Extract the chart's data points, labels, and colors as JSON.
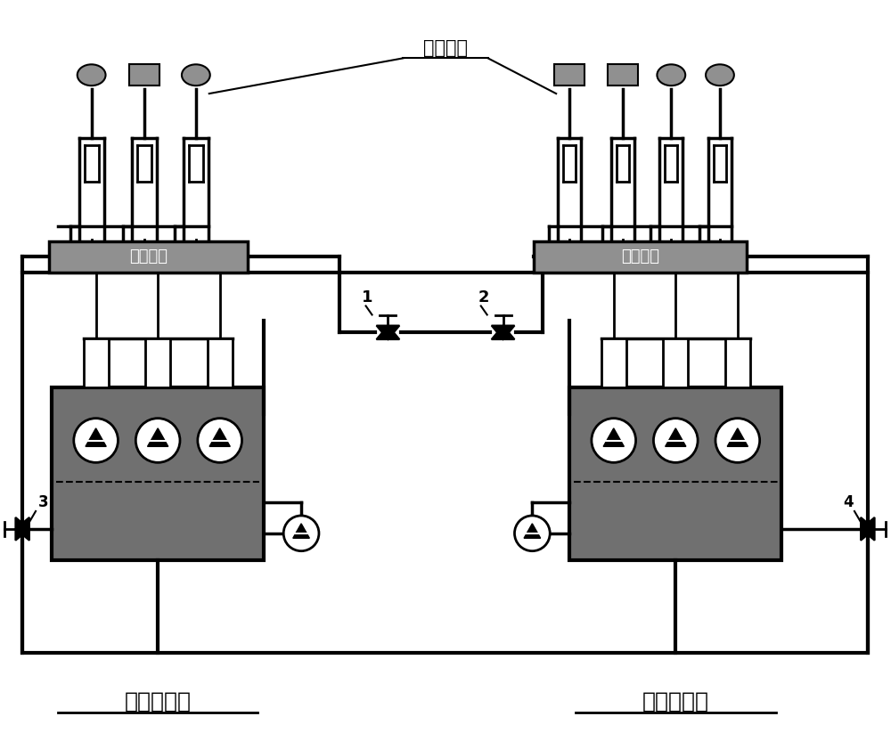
{
  "bg_color": "#ffffff",
  "line_color": "#000000",
  "gray_color": "#909090",
  "dark_gray": "#707070",
  "title_left": "二号液压站",
  "title_right": "三号液压站",
  "label_valve_platform": "液压阀台",
  "label_actuator": "执行机构",
  "valve1_label": "1",
  "valve2_label": "2",
  "valve3_label": "3",
  "valve4_label": "4"
}
